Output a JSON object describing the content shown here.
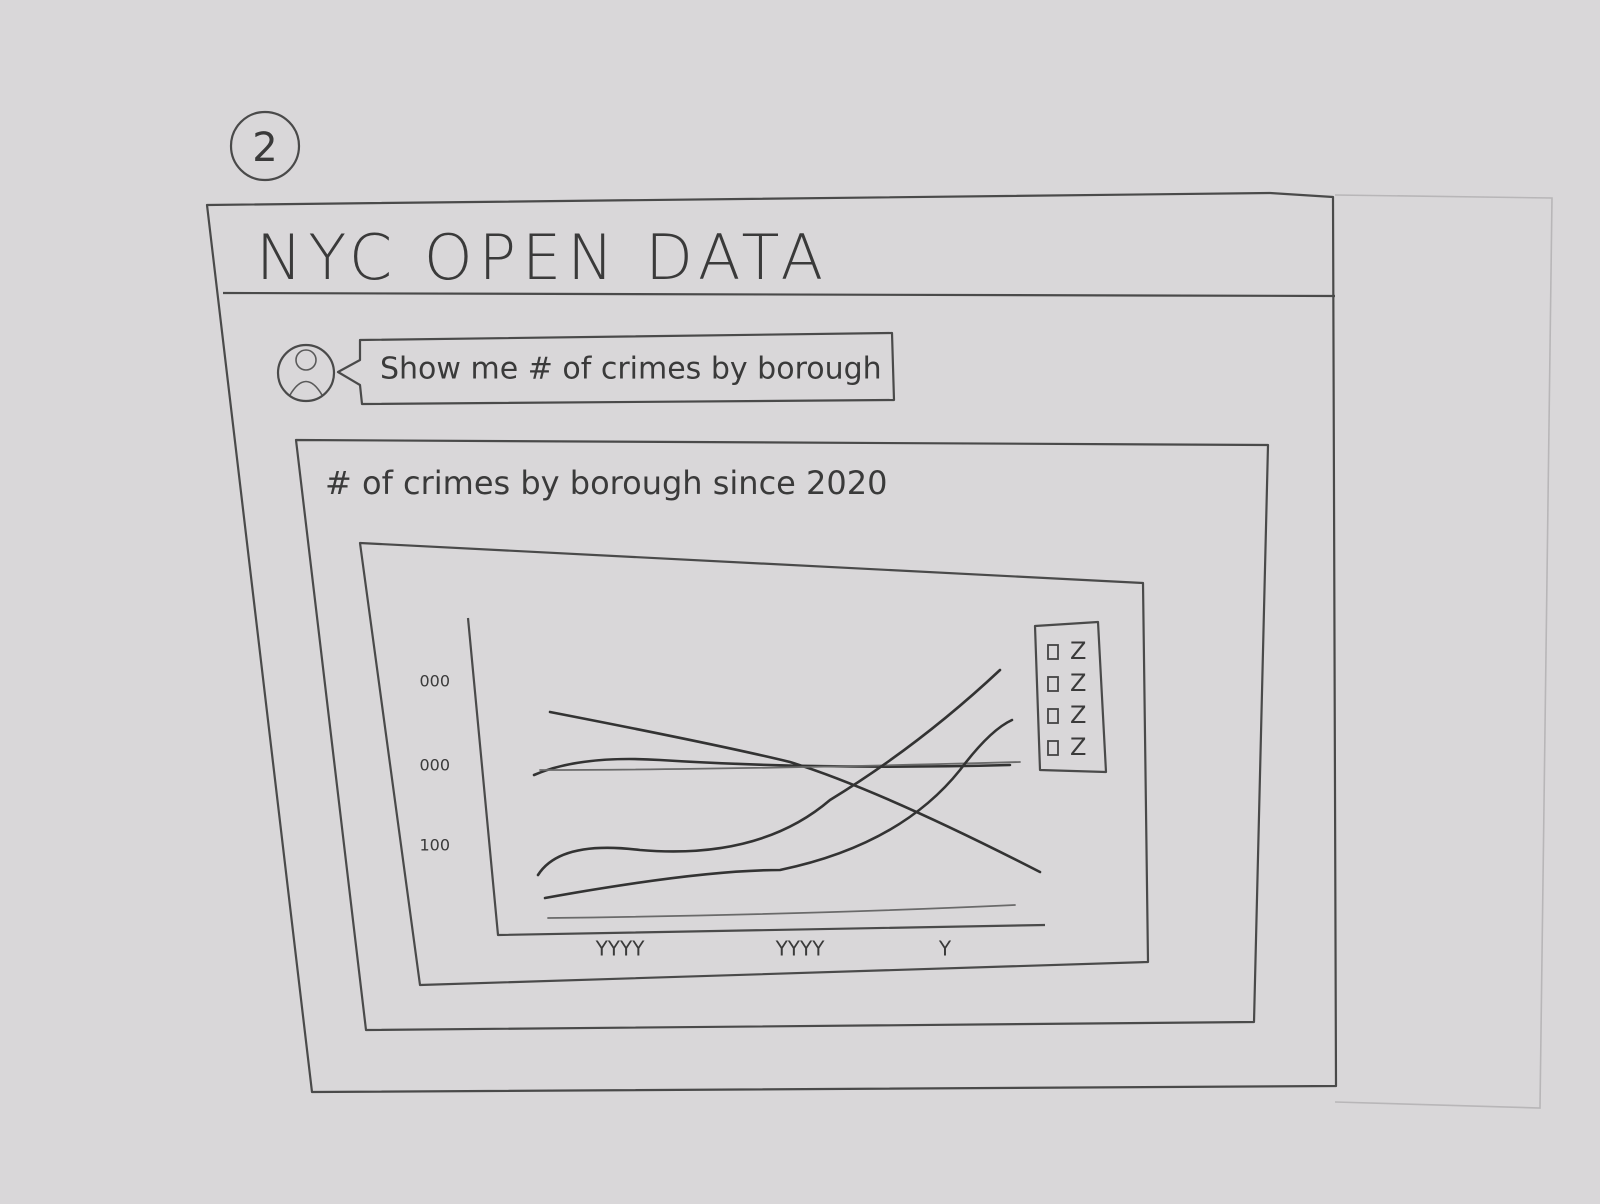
{
  "step": "2",
  "header": {
    "title": "NYC OPEN DATA"
  },
  "query": {
    "text": "Show me # of crimes by borough"
  },
  "chart": {
    "title": "# of crimes by borough since 2020",
    "y_labels": [
      "000",
      "000",
      "100"
    ],
    "x_labels": [
      "YYYY",
      "YYYY",
      "Y"
    ],
    "legend": [
      "Z",
      "Z",
      "Z",
      "Z"
    ]
  }
}
